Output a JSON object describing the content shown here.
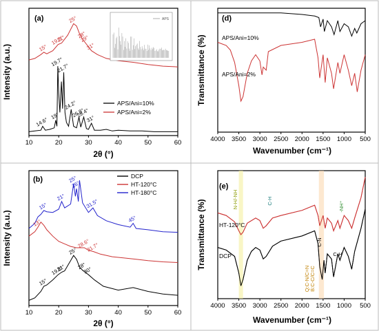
{
  "chart_data": [
    {
      "type": "line",
      "panel_label": "(a)",
      "xlabel": "2θ (°)",
      "ylabel": "Intensity (a.u.)",
      "xlim": [
        10,
        60
      ],
      "xticks": [
        10,
        20,
        30,
        40,
        50,
        60
      ],
      "legend_position": "right",
      "series": [
        {
          "name": "APS/Ani=10%",
          "color": "#000000",
          "x": [
            10,
            12,
            14,
            14.6,
            15.5,
            17,
            18.5,
            19,
            19.4,
            19.7,
            20,
            20.4,
            20.9,
            21.3,
            21.7,
            22.1,
            22.6,
            23.3,
            24.2,
            25,
            26,
            26.8,
            27.4,
            28.4,
            29.3,
            30,
            31,
            32,
            34,
            36,
            38,
            40,
            44,
            48,
            52,
            56,
            60
          ],
          "y": [
            0.05,
            0.06,
            0.07,
            0.12,
            0.07,
            0.08,
            0.1,
            0.2,
            0.12,
            0.9,
            0.55,
            0.3,
            0.7,
            0.35,
            0.82,
            0.3,
            0.17,
            0.12,
            0.34,
            0.12,
            0.1,
            0.24,
            0.11,
            0.24,
            0.09,
            0.08,
            0.16,
            0.07,
            0.07,
            0.08,
            0.06,
            0.07,
            0.06,
            0.06,
            0.05,
            0.05,
            0.05
          ]
        },
        {
          "name": "APS/Ani=2%",
          "color": "#cc3333",
          "x": [
            10,
            12,
            14,
            15,
            16,
            18,
            19.8,
            21,
            23,
            25,
            26,
            27,
            28,
            29,
            30,
            31,
            33,
            36,
            40,
            45,
            50,
            55,
            60
          ],
          "y": [
            0.98,
            1.0,
            1.05,
            1.08,
            1.06,
            1.1,
            1.18,
            1.2,
            1.3,
            1.45,
            1.42,
            1.32,
            1.25,
            1.2,
            1.15,
            1.1,
            1.05,
            1.0,
            0.97,
            0.95,
            0.92,
            0.9,
            0.89
          ]
        }
      ],
      "annotations": [
        {
          "text": "14.6°",
          "x": 14.6,
          "series": "APS/Ani=10%"
        },
        {
          "text": "19°",
          "x": 19,
          "series": "APS/Ani=10%"
        },
        {
          "text": "19.7°",
          "x": 19.7,
          "series": "APS/Ani=10%"
        },
        {
          "text": "21.7°",
          "x": 21.7,
          "series": "APS/Ani=10%"
        },
        {
          "text": "24.2°",
          "x": 24.2,
          "series": "APS/Ani=10%"
        },
        {
          "text": "26.8°",
          "x": 26.8,
          "series": "APS/Ani=10%"
        },
        {
          "text": "28.4°",
          "x": 28.4,
          "series": "APS/Ani=10%"
        },
        {
          "text": "31°",
          "x": 31,
          "series": "APS/Ani=10%"
        },
        {
          "text": "15°",
          "x": 15,
          "series": "APS/Ani=2%"
        },
        {
          "text": "19.8°",
          "x": 19.8,
          "series": "APS/Ani=2%"
        },
        {
          "text": "21°",
          "x": 21,
          "series": "APS/Ani=2%"
        },
        {
          "text": "25°",
          "x": 25,
          "series": "APS/Ani=2%"
        },
        {
          "text": "28°",
          "x": 28,
          "series": "APS/Ani=2%"
        },
        {
          "text": "29°",
          "x": 29,
          "series": "APS/Ani=2%"
        },
        {
          "text": "31°",
          "x": 31,
          "series": "APS/Ani=2%"
        }
      ],
      "inset": {
        "legend": "APS"
      }
    },
    {
      "type": "line",
      "panel_label": "(d)",
      "xlabel": "Wavenumber (cm⁻¹)",
      "ylabel": "Transmittance (%)",
      "xlim": [
        4000,
        500
      ],
      "xticks": [
        4000,
        3500,
        3000,
        2500,
        2000,
        1500,
        1000,
        500
      ],
      "series": [
        {
          "name": "APS/Ani=10%",
          "color": "#000000",
          "x": [
            4000,
            3500,
            3000,
            2500,
            2000,
            1700,
            1600,
            1560,
            1500,
            1470,
            1400,
            1300,
            1240,
            1150,
            1100,
            1000,
            900,
            820,
            750,
            700,
            600,
            500
          ],
          "y": [
            0.97,
            0.97,
            0.97,
            0.97,
            0.96,
            0.95,
            0.94,
            0.88,
            0.93,
            0.85,
            0.92,
            0.88,
            0.83,
            0.92,
            0.85,
            0.9,
            0.88,
            0.82,
            0.87,
            0.84,
            0.9,
            0.92
          ]
        },
        {
          "name": "APS/Ani=2%",
          "color": "#cc3333",
          "x": [
            4000,
            3800,
            3700,
            3600,
            3500,
            3450,
            3400,
            3300,
            3200,
            3100,
            3000,
            2950,
            2920,
            2850,
            2800,
            2500,
            2000,
            1700,
            1620,
            1580,
            1500,
            1450,
            1400,
            1300,
            1250,
            1150,
            1100,
            1000,
            900,
            820,
            750,
            690,
            600,
            500
          ],
          "y": [
            0.78,
            0.76,
            0.73,
            0.65,
            0.5,
            0.4,
            0.43,
            0.58,
            0.66,
            0.7,
            0.66,
            0.57,
            0.62,
            0.6,
            0.72,
            0.76,
            0.78,
            0.8,
            0.68,
            0.55,
            0.7,
            0.52,
            0.68,
            0.58,
            0.48,
            0.65,
            0.58,
            0.7,
            0.6,
            0.5,
            0.58,
            0.46,
            0.6,
            0.7
          ]
        }
      ]
    },
    {
      "type": "line",
      "panel_label": "(b)",
      "xlabel": "2θ (°)",
      "ylabel": "Intensity (a.u.)",
      "xlim": [
        10,
        60
      ],
      "xticks": [
        10,
        20,
        30,
        40,
        50,
        60
      ],
      "legend_position": "top-right",
      "series": [
        {
          "name": "DCP",
          "color": "#000000",
          "x": [
            10,
            12,
            14,
            15,
            16,
            18,
            19.8,
            21,
            22,
            24,
            25,
            26,
            27,
            28,
            30,
            32,
            35,
            40,
            45,
            50,
            55,
            60
          ],
          "y": [
            0.08,
            0.12,
            0.22,
            0.3,
            0.32,
            0.4,
            0.48,
            0.52,
            0.54,
            0.7,
            0.78,
            0.72,
            0.6,
            0.55,
            0.48,
            0.4,
            0.3,
            0.24,
            0.28,
            0.22,
            0.18,
            0.16
          ]
        },
        {
          "name": "HT-120°C",
          "color": "#cc3333",
          "x": [
            10,
            12,
            13,
            14,
            15,
            16,
            18,
            20,
            22,
            24,
            26,
            28.6,
            30,
            31.7,
            34,
            38,
            42,
            46,
            50,
            55,
            60
          ],
          "y": [
            1.08,
            1.15,
            1.22,
            1.3,
            1.25,
            1.18,
            1.08,
            1.0,
            0.96,
            0.92,
            0.9,
            0.9,
            0.86,
            0.84,
            0.8,
            0.76,
            0.74,
            0.72,
            0.7,
            0.68,
            0.67
          ]
        },
        {
          "name": "HT-180°C",
          "color": "#2222cc",
          "x": [
            10,
            12,
            13,
            14,
            15,
            16,
            18,
            20,
            21,
            22,
            24,
            25,
            25.6,
            26,
            26.6,
            27,
            28,
            30,
            31.5,
            33,
            36,
            40,
            44,
            45,
            46,
            50,
            55,
            60
          ],
          "y": [
            1.2,
            1.28,
            1.38,
            1.42,
            1.48,
            1.46,
            1.45,
            1.5,
            1.62,
            1.52,
            1.58,
            1.9,
            1.7,
            1.82,
            1.62,
            1.95,
            1.6,
            1.45,
            1.52,
            1.4,
            1.32,
            1.26,
            1.22,
            1.28,
            1.2,
            1.18,
            1.15,
            1.14
          ]
        }
      ],
      "annotations": [
        {
          "text": "15°",
          "x": 15,
          "series": "DCP"
        },
        {
          "text": "19.8°",
          "x": 19.8,
          "series": "DCP"
        },
        {
          "text": "21°",
          "x": 21,
          "series": "DCP"
        },
        {
          "text": "25°",
          "x": 25,
          "series": "DCP"
        },
        {
          "text": "28°",
          "x": 28,
          "series": "DCP"
        },
        {
          "text": "30°",
          "x": 30,
          "series": "DCP"
        },
        {
          "text": "13°",
          "x": 13,
          "series": "HT-120°C"
        },
        {
          "text": "28.6°",
          "x": 28.6,
          "series": "HT-120°C"
        },
        {
          "text": "31.7°",
          "x": 31.7,
          "series": "HT-120°C"
        },
        {
          "text": "15°",
          "x": 15,
          "series": "HT-180°C"
        },
        {
          "text": "21°",
          "x": 21,
          "series": "HT-180°C"
        },
        {
          "text": "25°",
          "x": 25,
          "series": "HT-180°C"
        },
        {
          "text": "26°",
          "x": 26,
          "series": "HT-180°C"
        },
        {
          "text": "31.5°",
          "x": 31.5,
          "series": "HT-180°C"
        },
        {
          "text": "45°",
          "x": 45,
          "series": "HT-180°C"
        }
      ]
    },
    {
      "type": "line",
      "panel_label": "(e)",
      "xlabel": "Wavenumber (cm⁻¹)",
      "ylabel": "Transmittance (%)",
      "xlim": [
        4000,
        500
      ],
      "xticks": [
        4000,
        3500,
        3000,
        2500,
        2000,
        1500,
        1000,
        500
      ],
      "series": [
        {
          "name": "HT-120°C",
          "color": "#cc3333",
          "x": [
            4000,
            3800,
            3600,
            3500,
            3450,
            3400,
            3300,
            3100,
            3000,
            2920,
            2850,
            2700,
            2500,
            2000,
            1700,
            1620,
            1580,
            1500,
            1450,
            1400,
            1300,
            1250,
            1150,
            1100,
            1000,
            900,
            820,
            750,
            600,
            500
          ],
          "y": [
            0.72,
            0.7,
            0.65,
            0.58,
            0.55,
            0.57,
            0.64,
            0.68,
            0.66,
            0.6,
            0.62,
            0.68,
            0.7,
            0.74,
            0.78,
            0.7,
            0.62,
            0.7,
            0.6,
            0.68,
            0.64,
            0.58,
            0.66,
            0.6,
            0.7,
            0.66,
            0.6,
            0.68,
            0.84,
            1.0
          ]
        },
        {
          "name": "DCP",
          "color": "#000000",
          "x": [
            4000,
            3800,
            3600,
            3500,
            3450,
            3400,
            3300,
            3200,
            3100,
            3000,
            2920,
            2850,
            2700,
            2500,
            2000,
            1700,
            1620,
            1580,
            1520,
            1480,
            1450,
            1400,
            1300,
            1250,
            1150,
            1100,
            1000,
            900,
            820,
            750,
            600,
            500
          ],
          "y": [
            0.45,
            0.43,
            0.38,
            0.25,
            0.15,
            0.2,
            0.35,
            0.42,
            0.45,
            0.43,
            0.36,
            0.38,
            0.46,
            0.5,
            0.54,
            0.58,
            0.48,
            0.3,
            0.2,
            0.35,
            0.25,
            0.4,
            0.36,
            0.22,
            0.4,
            0.35,
            0.45,
            0.38,
            0.28,
            0.42,
            0.6,
            0.75
          ]
        }
      ],
      "annotations": [
        {
          "text": "N-H/-NH",
          "color": "#8a9a00"
        },
        {
          "text": "C-H",
          "color": "#1f7f7f"
        },
        {
          "text": "Q:C-N/C=N",
          "color": "#c08000"
        },
        {
          "text": "B:C-C/C=C",
          "color": "#c08000"
        },
        {
          "text": "C-N",
          "color": "#000000"
        },
        {
          "text": "-NH⁺",
          "color": "#2a8a2a"
        },
        {
          "text": "C-H",
          "color": "#000000"
        }
      ]
    }
  ]
}
